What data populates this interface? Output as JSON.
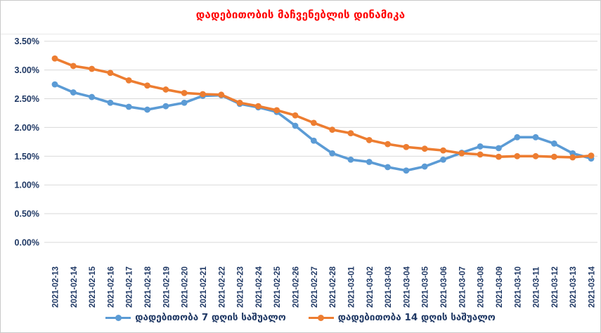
{
  "title": "დადებითობის მაჩვენებლის დინამიკა",
  "colors": {
    "title": "#FF0000",
    "axis_text": "#1F3864",
    "gridline": "#D9D9D9",
    "series_7day": "#5B9BD5",
    "series_14day": "#ED7D31",
    "frame_border": "#C9C9C9"
  },
  "chart_data": {
    "type": "line",
    "title": "დადებითობის მაჩვენებლის დინამიკა",
    "x": [
      "2021-02-13",
      "2021-02-14",
      "2021-02-15",
      "2021-02-16",
      "2021-02-17",
      "2021-02-18",
      "2021-02-19",
      "2021-02-20",
      "2021-02-21",
      "2021-02-22",
      "2021-02-23",
      "2021-02-24",
      "2021-02-25",
      "2021-02-26",
      "2021-02-27",
      "2021-02-28",
      "2021-03-01",
      "2021-03-02",
      "2021-03-03",
      "2021-03-04",
      "2021-03-05",
      "2021-03-06",
      "2021-03-07",
      "2021-03-08",
      "2021-03-09",
      "2021-03-10",
      "2021-03-11",
      "2021-03-12",
      "2021-03-13",
      "2021-03-14"
    ],
    "series": [
      {
        "name": "დადებითობა 7 დღის საშუალო",
        "color": "#5B9BD5",
        "values": [
          2.75,
          2.61,
          2.53,
          2.43,
          2.36,
          2.31,
          2.37,
          2.43,
          2.55,
          2.56,
          2.41,
          2.35,
          2.27,
          2.03,
          1.77,
          1.55,
          1.44,
          1.4,
          1.31,
          1.25,
          1.32,
          1.44,
          1.56,
          1.67,
          1.64,
          1.83,
          1.83,
          1.72,
          1.55,
          1.46
        ]
      },
      {
        "name": "დადებითობა 14 დღის საშუალო",
        "color": "#ED7D31",
        "values": [
          3.2,
          3.07,
          3.02,
          2.95,
          2.82,
          2.73,
          2.66,
          2.6,
          2.58,
          2.57,
          2.43,
          2.37,
          2.3,
          2.21,
          2.08,
          1.96,
          1.9,
          1.78,
          1.71,
          1.66,
          1.63,
          1.6,
          1.55,
          1.53,
          1.49,
          1.5,
          1.5,
          1.49,
          1.48,
          1.51
        ]
      }
    ],
    "ylim": [
      0,
      3.5
    ],
    "ytick_step": 0.5,
    "ytick_labels": [
      "0.00%",
      "0.50%",
      "1.00%",
      "1.50%",
      "2.00%",
      "2.50%",
      "3.00%",
      "3.50%"
    ],
    "grid": true,
    "legend_position": "bottom"
  },
  "legend": {
    "items": [
      {
        "label": "დადებითობა 7 დღის საშუალო",
        "color": "#5B9BD5"
      },
      {
        "label": "დადებითობა 14 დღის საშუალო",
        "color": "#ED7D31"
      }
    ]
  }
}
